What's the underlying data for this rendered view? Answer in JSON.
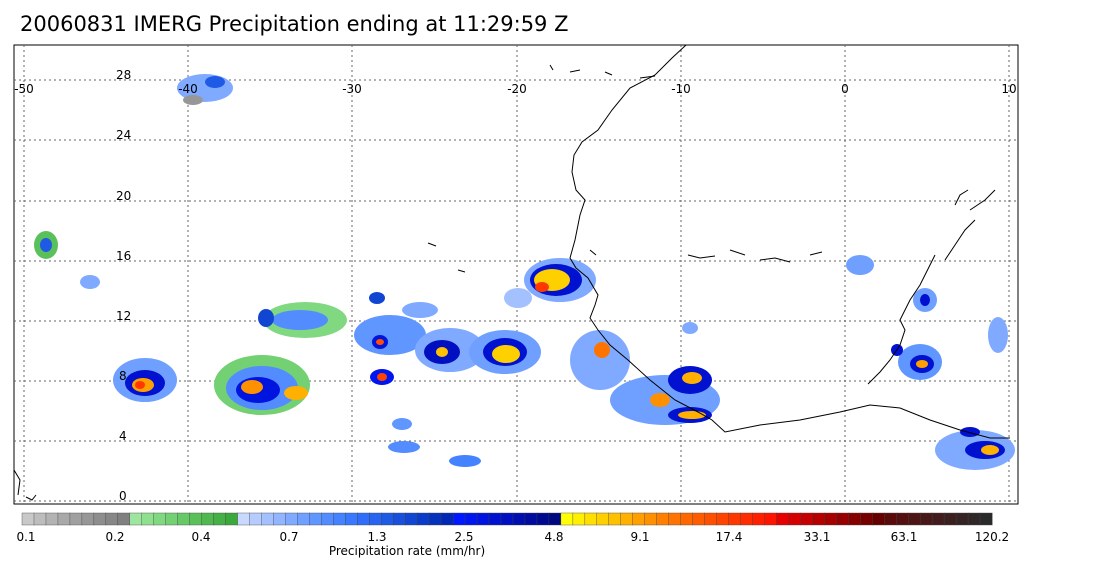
{
  "title": "20060831 IMERG Precipitation ending at 11:29:59 Z",
  "map": {
    "lon_range": [
      -50,
      10
    ],
    "lat_range": [
      -0.5,
      30.5
    ],
    "lon_labels": [
      "-50",
      "-40",
      "-30",
      "-20",
      "-10",
      "0",
      "10"
    ],
    "lon_values": [
      -50,
      -40,
      -30,
      -20,
      -10,
      0,
      10
    ],
    "lat_labels": [
      "28",
      "24",
      "20",
      "16",
      "12",
      "8",
      "4",
      "0"
    ],
    "lat_values": [
      28,
      24,
      20,
      16,
      12,
      8,
      4,
      0
    ],
    "grid": "dotted",
    "coastline_color": "#000000"
  },
  "colorbar": {
    "label": "Precipitation rate (mm/hr)",
    "tick_labels": [
      "0.1",
      "0.2",
      "0.4",
      "0.7",
      "1.3",
      "2.5",
      "4.8",
      "9.1",
      "17.4",
      "33.1",
      "63.1",
      "120.2"
    ],
    "colors": [
      "#c8c8c8",
      "#bdbdbd",
      "#b3b3b3",
      "#a9a9a9",
      "#a0a0a0",
      "#979797",
      "#8e8e8e",
      "#878787",
      "#808080",
      "#9ee6a0",
      "#8ee08f",
      "#80d980",
      "#73d173",
      "#66c966",
      "#5ac15a",
      "#4fb94f",
      "#45b045",
      "#3ba83b",
      "#c9d8ff",
      "#b6ccff",
      "#a3c0ff",
      "#92b5ff",
      "#80aaff",
      "#6fa0ff",
      "#6096ff",
      "#528cff",
      "#4582ff",
      "#3a78ff",
      "#306efa",
      "#2764f0",
      "#1f5ae6",
      "#1850dc",
      "#1046d2",
      "#093cc8",
      "#0432be",
      "#0028b4",
      "#0018ff",
      "#0016f0",
      "#0014e0",
      "#0012d0",
      "#0010c0",
      "#000eb0",
      "#000ca0",
      "#000a90",
      "#000880",
      "#ffff00",
      "#ffef00",
      "#ffdf00",
      "#ffd000",
      "#ffc000",
      "#ffb000",
      "#ffa000",
      "#ff9000",
      "#ff8000",
      "#ff7400",
      "#ff6800",
      "#ff5c00",
      "#ff5000",
      "#ff4400",
      "#ff3800",
      "#ff2c00",
      "#ff2000",
      "#ff1400",
      "#e60000",
      "#d60000",
      "#c60000",
      "#b60000",
      "#a60000",
      "#960000",
      "#860000",
      "#760000",
      "#660000",
      "#5a0a0a",
      "#541010",
      "#4e1414",
      "#481818",
      "#421c1c",
      "#3c2020",
      "#362424",
      "#302828",
      "#2a2a2a"
    ]
  }
}
